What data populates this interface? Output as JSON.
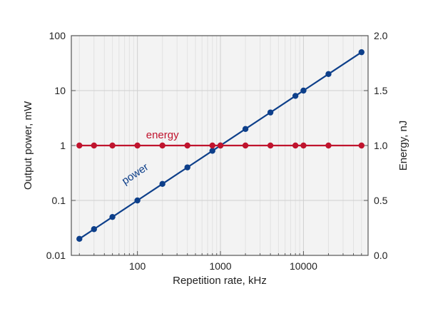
{
  "chart_data": {
    "type": "line",
    "xlabel": "Repetition rate, kHz",
    "ylabel": "Output power, mW",
    "y2label": "Energy, nJ",
    "xscale": "log",
    "yscale": "log",
    "y2scale": "linear",
    "xlim": [
      16,
      60000
    ],
    "ylim": [
      0.01,
      100
    ],
    "y2lim": [
      0.0,
      2.0
    ],
    "x_ticks": [
      100,
      1000,
      10000
    ],
    "x_tick_labels": [
      "100",
      "1000",
      "10000"
    ],
    "y_ticks": [
      0.01,
      0.1,
      1,
      10,
      100
    ],
    "y_tick_labels": [
      "0.01",
      "0.1",
      "1",
      "10",
      "100"
    ],
    "y2_ticks": [
      0.0,
      0.5,
      1.0,
      1.5,
      2.0
    ],
    "y2_tick_labels": [
      "0.0",
      "0.5",
      "1.0",
      "1.5",
      "2.0"
    ],
    "grid": true,
    "series": [
      {
        "name": "power",
        "axis": "left",
        "color": "#0d3f8a",
        "x": [
          20,
          30,
          50,
          100,
          200,
          400,
          800,
          1000,
          2000,
          4000,
          8000,
          10000,
          20000,
          50000
        ],
        "y": [
          0.02,
          0.03,
          0.05,
          0.1,
          0.2,
          0.4,
          0.8,
          1.0,
          2.0,
          4.0,
          8.0,
          10.0,
          20.0,
          50.0
        ]
      },
      {
        "name": "energy",
        "axis": "right",
        "color": "#c0142e",
        "x": [
          20,
          30,
          50,
          100,
          200,
          400,
          800,
          1000,
          2000,
          4000,
          8000,
          10000,
          20000,
          50000
        ],
        "y": [
          1.0,
          1.0,
          1.0,
          1.0,
          1.0,
          1.0,
          1.0,
          1.0,
          1.0,
          1.0,
          1.0,
          1.0,
          1.0,
          1.0
        ]
      }
    ],
    "colors": {
      "plot_background": "#f3f3f3",
      "grid_major": "#cfcfcf",
      "grid_minor": "#e2e2e2",
      "frame": "#555555"
    }
  }
}
